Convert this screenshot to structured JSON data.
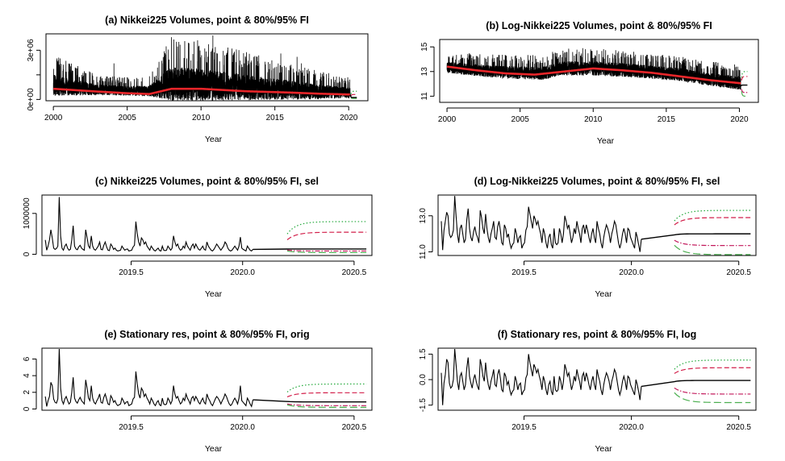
{
  "colors": {
    "background": "#ffffff",
    "series": "#000000",
    "trend": "#e8262a",
    "upper95": "#22a83a",
    "upper80": "#d21f4a",
    "lower80": "#c2185b",
    "lower95": "#4caf50"
  },
  "chart_data": [
    {
      "id": "a",
      "type": "line",
      "title": "(a) Nikkei225 Volumes, point & 80%/95% FI",
      "xlabel": "Year",
      "ylabel": "",
      "xlim": [
        1999.5,
        2021.3
      ],
      "ylim": [
        -80000,
        4000000
      ],
      "xticks": [
        2000,
        2005,
        2010,
        2015,
        2020
      ],
      "xtick_labels": [
        "2000",
        "2005",
        "2010",
        "2015",
        "2020"
      ],
      "yticks": [
        0,
        1500000,
        3000000
      ],
      "ytick_labels": [
        "0e+00",
        "",
        "3e+06"
      ],
      "grid": false,
      "series_note": "daily volume, noisy, with spikes to about 3.9e+06 in 2008 and 2010",
      "anchors_x": [
        2000,
        2003,
        2005,
        2006.5,
        2008,
        2010,
        2013,
        2016,
        2018,
        2020.1
      ],
      "baseline": [
        800000,
        550000,
        500000,
        480000,
        850000,
        800000,
        650000,
        520000,
        420000,
        380000
      ],
      "amplitude": [
        1000000,
        500000,
        450000,
        500000,
        1600000,
        1500000,
        1200000,
        900000,
        700000,
        500000
      ],
      "spikes": [
        [
          2004.1,
          2200000
        ],
        [
          2008.0,
          3800000
        ],
        [
          2008.5,
          2500000
        ],
        [
          2010.8,
          3900000
        ],
        [
          2012.2,
          2700000
        ],
        [
          2013.8,
          2600000
        ],
        [
          2015.4,
          2800000
        ],
        [
          2016.5,
          2600000
        ],
        [
          2016.8,
          2200000
        ]
      ],
      "trend_x": [
        2000,
        2003,
        2005,
        2006.5,
        2008,
        2010,
        2013,
        2016,
        2018,
        2020.1
      ],
      "trend_y": [
        650000,
        480000,
        380000,
        330000,
        650000,
        650000,
        500000,
        420000,
        350000,
        300000
      ],
      "forecast_x_range": [
        2020.15,
        2020.55
      ],
      "forecast": {
        "point": 120000,
        "lower80": 80000,
        "upper80": 300000,
        "lower95": 60000,
        "upper95": 500000
      }
    },
    {
      "id": "b",
      "type": "line",
      "title": "(b) Log-Nikkei225 Volumes, point & 80%/95% FI",
      "xlabel": "Year",
      "ylabel": "",
      "xlim": [
        1999.5,
        2021.3
      ],
      "ylim": [
        10.5,
        15.6
      ],
      "xticks": [
        2000,
        2005,
        2010,
        2015,
        2020
      ],
      "xtick_labels": [
        "2000",
        "2005",
        "2010",
        "2015",
        "2020"
      ],
      "yticks": [
        11,
        13,
        15
      ],
      "ytick_labels": [
        "11",
        "13",
        "15"
      ],
      "grid": false,
      "series_note": "log daily volume, noisy band around a smooth trend",
      "anchors_x": [
        2000,
        2003,
        2005,
        2006.5,
        2008,
        2010,
        2013,
        2016,
        2018,
        2020.1
      ],
      "baseline": [
        13.3,
        12.95,
        12.85,
        12.8,
        13.2,
        13.2,
        13.0,
        12.7,
        12.3,
        12.0
      ],
      "amplitude": [
        0.7,
        0.75,
        0.8,
        0.8,
        0.9,
        0.9,
        0.85,
        0.8,
        0.8,
        0.85
      ],
      "trend_x": [
        2000,
        2002,
        2004,
        2006,
        2008,
        2010,
        2012,
        2014,
        2016,
        2018,
        2020.1
      ],
      "trend_y": [
        13.4,
        13.1,
        12.85,
        12.75,
        13.0,
        13.25,
        13.1,
        12.9,
        12.6,
        12.3,
        12.05
      ],
      "forecast_x_range": [
        2020.15,
        2020.55
      ],
      "forecast": {
        "point": 11.9,
        "lower80": 11.3,
        "upper80": 12.6,
        "lower95": 11.0,
        "upper95": 13.0
      }
    },
    {
      "id": "c",
      "type": "line",
      "title": "(c) Nikkei225 Volumes, point & 80%/95% FI, sel",
      "xlabel": "Year",
      "ylabel": "",
      "xlim": [
        2019.1,
        2020.58
      ],
      "ylim": [
        -30000,
        1450000
      ],
      "xticks": [
        2019.5,
        2020.0,
        2020.5
      ],
      "xtick_labels": [
        "2019.5",
        "2020.0",
        "2020.5"
      ],
      "yticks": [
        0,
        1000000
      ],
      "ytick_labels": [
        "0",
        "1000000"
      ],
      "grid": false,
      "x_start": 2019.115,
      "x_step": 0.00625,
      "values": [
        350000,
        100000,
        200000,
        350000,
        600000,
        400000,
        150000,
        120000,
        140000,
        200000,
        1400000,
        450000,
        150000,
        100000,
        200000,
        250000,
        150000,
        100000,
        120000,
        350000,
        700000,
        200000,
        130000,
        110000,
        180000,
        220000,
        150000,
        120000,
        100000,
        600000,
        400000,
        200000,
        150000,
        450000,
        200000,
        120000,
        100000,
        150000,
        200000,
        300000,
        120000,
        110000,
        220000,
        300000,
        180000,
        100000,
        90000,
        250000,
        200000,
        120000,
        150000,
        100000,
        80000,
        90000,
        100000,
        200000,
        150000,
        100000,
        120000,
        130000,
        80000,
        90000,
        100000,
        180000,
        220000,
        800000,
        500000,
        300000,
        200000,
        400000,
        350000,
        250000,
        300000,
        200000,
        150000,
        100000,
        200000,
        150000,
        100000,
        80000,
        120000,
        150000,
        90000,
        80000,
        200000,
        100000,
        90000,
        100000,
        200000,
        150000,
        100000,
        150000,
        450000,
        300000,
        200000,
        250000,
        150000,
        100000,
        120000,
        200000,
        150000,
        300000,
        200000,
        150000,
        100000,
        200000,
        250000,
        150000,
        250000,
        180000,
        120000,
        100000,
        150000,
        200000,
        120000,
        100000,
        300000,
        200000,
        150000,
        100000,
        80000,
        120000,
        180000,
        250000,
        200000,
        150000,
        100000,
        150000,
        200000,
        300000,
        250000,
        150000,
        100000,
        80000,
        100000,
        150000,
        200000,
        150000,
        100000,
        200000,
        420000,
        150000,
        120000,
        100000,
        80000,
        200000,
        150000,
        100000,
        80000,
        120000
      ],
      "forecast_x_range": [
        2020.2,
        2020.555
      ],
      "forecast": {
        "point": 130000,
        "lower80": 80000,
        "upper80": 540000,
        "lower95": 40000,
        "upper95": 800000
      }
    },
    {
      "id": "d",
      "type": "line",
      "title": "(d) Log-Nikkei225 Volumes, point & 80%/95% FI, sel",
      "xlabel": "Year",
      "ylabel": "",
      "xlim": [
        2019.1,
        2020.58
      ],
      "ylim": [
        10.8,
        14.15
      ],
      "xticks": [
        2019.5,
        2020.0,
        2020.5
      ],
      "xtick_labels": [
        "2019.5",
        "2020.0",
        "2020.5"
      ],
      "yticks": [
        11.0,
        13.0
      ],
      "ytick_labels": [
        "11.0",
        "13.0"
      ],
      "grid": false,
      "x_start": 2019.115,
      "x_step": 0.00625,
      "values": [
        12.7,
        11.1,
        12.2,
        12.7,
        13.2,
        13.0,
        12.0,
        11.8,
        11.9,
        12.2,
        14.1,
        13.0,
        12.0,
        11.5,
        12.3,
        12.5,
        12.0,
        11.5,
        11.7,
        12.8,
        13.4,
        12.3,
        11.8,
        11.6,
        12.1,
        12.4,
        12.0,
        11.8,
        11.5,
        13.3,
        12.9,
        12.3,
        12.0,
        13.1,
        12.3,
        11.8,
        11.5,
        12.0,
        12.3,
        12.7,
        11.8,
        11.7,
        12.4,
        12.7,
        12.2,
        11.5,
        11.4,
        12.5,
        12.3,
        11.8,
        12.0,
        11.5,
        11.2,
        11.4,
        11.5,
        12.3,
        12.0,
        11.5,
        11.8,
        11.9,
        11.2,
        11.4,
        11.5,
        12.2,
        12.4,
        13.5,
        13.1,
        12.7,
        12.3,
        13.0,
        12.8,
        12.5,
        12.7,
        12.3,
        12.0,
        11.5,
        12.3,
        12.0,
        11.5,
        11.2,
        11.8,
        12.0,
        11.4,
        11.2,
        12.3,
        11.5,
        11.4,
        11.5,
        12.3,
        12.0,
        11.5,
        12.0,
        13.0,
        12.7,
        12.3,
        12.5,
        12.0,
        11.5,
        11.8,
        12.3,
        12.0,
        12.7,
        12.3,
        12.0,
        11.5,
        12.3,
        12.5,
        12.0,
        12.5,
        12.2,
        11.8,
        11.5,
        12.0,
        12.3,
        11.8,
        11.5,
        12.7,
        12.3,
        12.0,
        11.5,
        11.2,
        11.8,
        12.2,
        12.5,
        12.3,
        12.0,
        11.5,
        12.0,
        12.3,
        12.7,
        12.5,
        12.0,
        11.5,
        11.2,
        11.5,
        12.0,
        12.3,
        12.0,
        11.5,
        12.3,
        12.2,
        11.8,
        11.6,
        11.4,
        11.2,
        12.1,
        11.8,
        11.4,
        11.0,
        11.7
      ],
      "forecast_x_range": [
        2020.2,
        2020.555
      ],
      "forecast": {
        "point": 12.0,
        "lower80": 11.35,
        "upper80": 12.9,
        "lower95": 10.85,
        "upper95": 13.3
      }
    },
    {
      "id": "e",
      "type": "line",
      "title": "(e) Stationary res, point & 80%/95% FI, orig",
      "xlabel": "Year",
      "ylabel": "",
      "xlim": [
        2019.1,
        2020.58
      ],
      "ylim": [
        -0.15,
        7.3
      ],
      "xticks": [
        2019.5,
        2020.0,
        2020.5
      ],
      "xtick_labels": [
        "2019.5",
        "2020.0",
        "2020.5"
      ],
      "yticks": [
        0,
        2,
        4,
        6
      ],
      "ytick_labels": [
        "0",
        "2",
        "4",
        "6"
      ],
      "grid": false,
      "x_start": 2019.115,
      "x_step": 0.00625,
      "values": [
        1.5,
        0.3,
        1.0,
        1.5,
        3.2,
        2.8,
        1.2,
        0.8,
        0.7,
        1.2,
        7.2,
        2.5,
        1.0,
        0.6,
        1.2,
        1.5,
        1.0,
        0.6,
        0.8,
        2.0,
        3.8,
        1.3,
        0.9,
        0.7,
        1.1,
        1.4,
        1.0,
        0.8,
        0.6,
        3.5,
        2.5,
        1.3,
        1.0,
        2.8,
        1.3,
        0.8,
        0.6,
        1.0,
        1.3,
        1.8,
        0.8,
        0.7,
        1.4,
        1.8,
        1.2,
        0.6,
        0.5,
        1.6,
        1.3,
        0.8,
        1.0,
        0.6,
        0.4,
        0.5,
        0.6,
        1.3,
        1.0,
        0.6,
        0.8,
        0.9,
        0.4,
        0.5,
        0.6,
        1.2,
        1.4,
        4.5,
        3.0,
        1.8,
        1.3,
        2.5,
        2.2,
        1.5,
        1.8,
        1.3,
        1.0,
        0.6,
        1.3,
        1.0,
        0.6,
        0.4,
        0.8,
        1.0,
        0.5,
        0.4,
        1.3,
        0.6,
        0.5,
        0.6,
        1.3,
        1.0,
        0.6,
        1.0,
        2.8,
        1.8,
        1.3,
        1.5,
        1.0,
        0.6,
        0.8,
        1.3,
        1.0,
        1.8,
        1.3,
        1.0,
        0.6,
        1.3,
        1.5,
        1.0,
        1.5,
        1.2,
        0.8,
        0.6,
        1.0,
        1.3,
        0.8,
        0.6,
        1.8,
        1.3,
        1.0,
        0.6,
        0.4,
        0.8,
        1.2,
        1.5,
        1.3,
        1.0,
        0.6,
        1.0,
        1.3,
        1.8,
        1.5,
        1.0,
        0.6,
        0.4,
        0.6,
        1.0,
        1.3,
        1.0,
        0.6,
        1.3,
        2.8,
        1.0,
        0.8,
        0.6,
        0.4,
        1.3,
        1.0,
        0.6,
        0.3,
        1.1
      ],
      "forecast_x_range": [
        2020.2,
        2020.555
      ],
      "forecast": {
        "point": 0.85,
        "lower80": 0.4,
        "upper80": 1.95,
        "lower95": 0.2,
        "upper95": 3.0
      }
    },
    {
      "id": "f",
      "type": "line",
      "title": "(f) Stationary res, point & 80%/95% FI, log",
      "xlabel": "Year",
      "ylabel": "",
      "xlim": [
        2019.1,
        2020.58
      ],
      "ylim": [
        -1.8,
        1.85
      ],
      "xticks": [
        2019.5,
        2020.0,
        2020.5
      ],
      "xtick_labels": [
        "2019.5",
        "2020.0",
        "2020.5"
      ],
      "yticks": [
        -1.5,
        0.0,
        1.5
      ],
      "ytick_labels": [
        "-1.5",
        "0.0",
        "1.5"
      ],
      "grid": false,
      "x_start": 2019.115,
      "x_step": 0.00625,
      "values": [
        0.4,
        -1.5,
        -0.2,
        0.3,
        1.2,
        1.0,
        -0.2,
        -0.5,
        -0.4,
        0.0,
        1.8,
        0.9,
        -0.1,
        -0.6,
        0.2,
        0.4,
        -0.1,
        -0.6,
        -0.3,
        0.7,
        1.3,
        0.2,
        -0.2,
        -0.5,
        0.0,
        0.3,
        -0.1,
        -0.4,
        -0.6,
        1.2,
        0.8,
        0.2,
        -0.1,
        1.0,
        0.2,
        -0.3,
        -0.6,
        -0.1,
        0.2,
        0.6,
        -0.3,
        -0.4,
        0.3,
        0.6,
        0.1,
        -0.6,
        -0.7,
        0.4,
        0.2,
        -0.3,
        -0.1,
        -0.6,
        -0.9,
        -0.7,
        -0.6,
        0.2,
        -0.1,
        -0.6,
        -0.3,
        -0.2,
        -0.9,
        -0.7,
        -0.6,
        0.1,
        0.3,
        1.5,
        1.0,
        0.6,
        0.2,
        0.9,
        0.7,
        0.4,
        0.6,
        0.2,
        -0.1,
        -0.6,
        0.2,
        -0.1,
        -0.6,
        -0.9,
        -0.3,
        -0.1,
        -0.7,
        -0.9,
        0.2,
        -0.6,
        -0.7,
        -0.6,
        0.2,
        -0.1,
        -0.6,
        -0.1,
        0.9,
        0.6,
        0.2,
        0.4,
        -0.1,
        -0.6,
        -0.3,
        0.2,
        -0.1,
        0.6,
        0.2,
        -0.1,
        -0.6,
        0.2,
        0.4,
        -0.1,
        0.4,
        0.1,
        -0.3,
        -0.6,
        -0.1,
        0.2,
        -0.3,
        -0.6,
        0.6,
        0.2,
        -0.1,
        -0.6,
        -0.9,
        -0.3,
        0.1,
        0.4,
        0.2,
        -0.1,
        -0.6,
        -0.1,
        0.2,
        0.6,
        0.4,
        -0.1,
        -0.6,
        -0.9,
        -0.6,
        -0.1,
        0.2,
        -0.1,
        -0.6,
        0.2,
        0.1,
        -0.3,
        -0.5,
        -0.7,
        -0.9,
        0.0,
        -0.3,
        -0.7,
        -1.2,
        -0.4
      ],
      "forecast_x_range": [
        2020.2,
        2020.555
      ],
      "forecast": {
        "point": -0.05,
        "lower80": -0.85,
        "upper80": 0.7,
        "lower95": -1.35,
        "upper95": 1.15
      }
    }
  ]
}
